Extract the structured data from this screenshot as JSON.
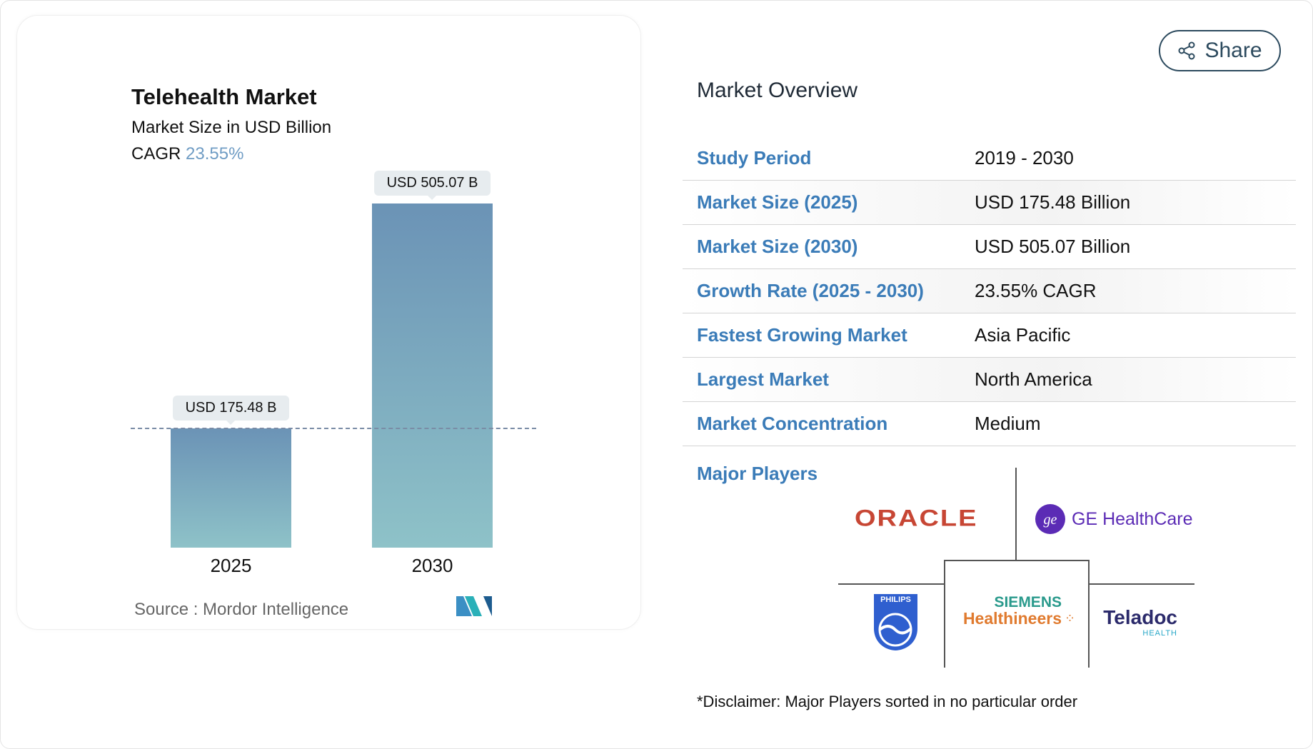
{
  "chart_data": {
    "type": "bar",
    "title": "Telehealth Market",
    "subtitle": "Market Size in USD Billion",
    "cagr_label": "CAGR",
    "cagr_value": "23.55%",
    "categories": [
      "2025",
      "2030"
    ],
    "values": [
      175.48,
      505.07
    ],
    "data_labels": [
      "USD 175.48 B",
      "USD 505.07 B"
    ],
    "ylim": [
      0,
      505.07
    ],
    "grid": false,
    "bar_colors": [
      "#6b93b6",
      "#8ec2c8"
    ],
    "reference_line": "dashed at 2025 value"
  },
  "source": "Source :  Mordor Intelligence",
  "share_label": "Share",
  "overview": {
    "title": "Market Overview",
    "rows": [
      {
        "label": "Study Period",
        "value": "2019 - 2030"
      },
      {
        "label": "Market Size (2025)",
        "value": "USD 175.48 Billion"
      },
      {
        "label": "Market Size (2030)",
        "value": "USD 505.07 Billion"
      },
      {
        "label": "Growth Rate (2025 - 2030)",
        "value": "23.55% CAGR"
      },
      {
        "label": "Fastest Growing Market",
        "value": "Asia Pacific"
      },
      {
        "label": "Largest Market",
        "value": "North America"
      },
      {
        "label": "Market Concentration",
        "value": "Medium"
      }
    ],
    "players_title": "Major Players",
    "players": [
      "ORACLE",
      "GE HealthCare",
      "PHILIPS",
      "SIEMENS Healthineers",
      "Teladoc HEALTH"
    ],
    "disclaimer": "*Disclaimer: Major Players sorted in no particular order"
  },
  "colors": {
    "label_blue": "#3b7cb8",
    "oracle": "#c74634",
    "ge": "#5b2bb5",
    "philips": "#2f5fcf",
    "siemens_teal": "#2a9a8c",
    "siemens_orange": "#e07a2e",
    "teladoc": "#2b2a6b"
  }
}
